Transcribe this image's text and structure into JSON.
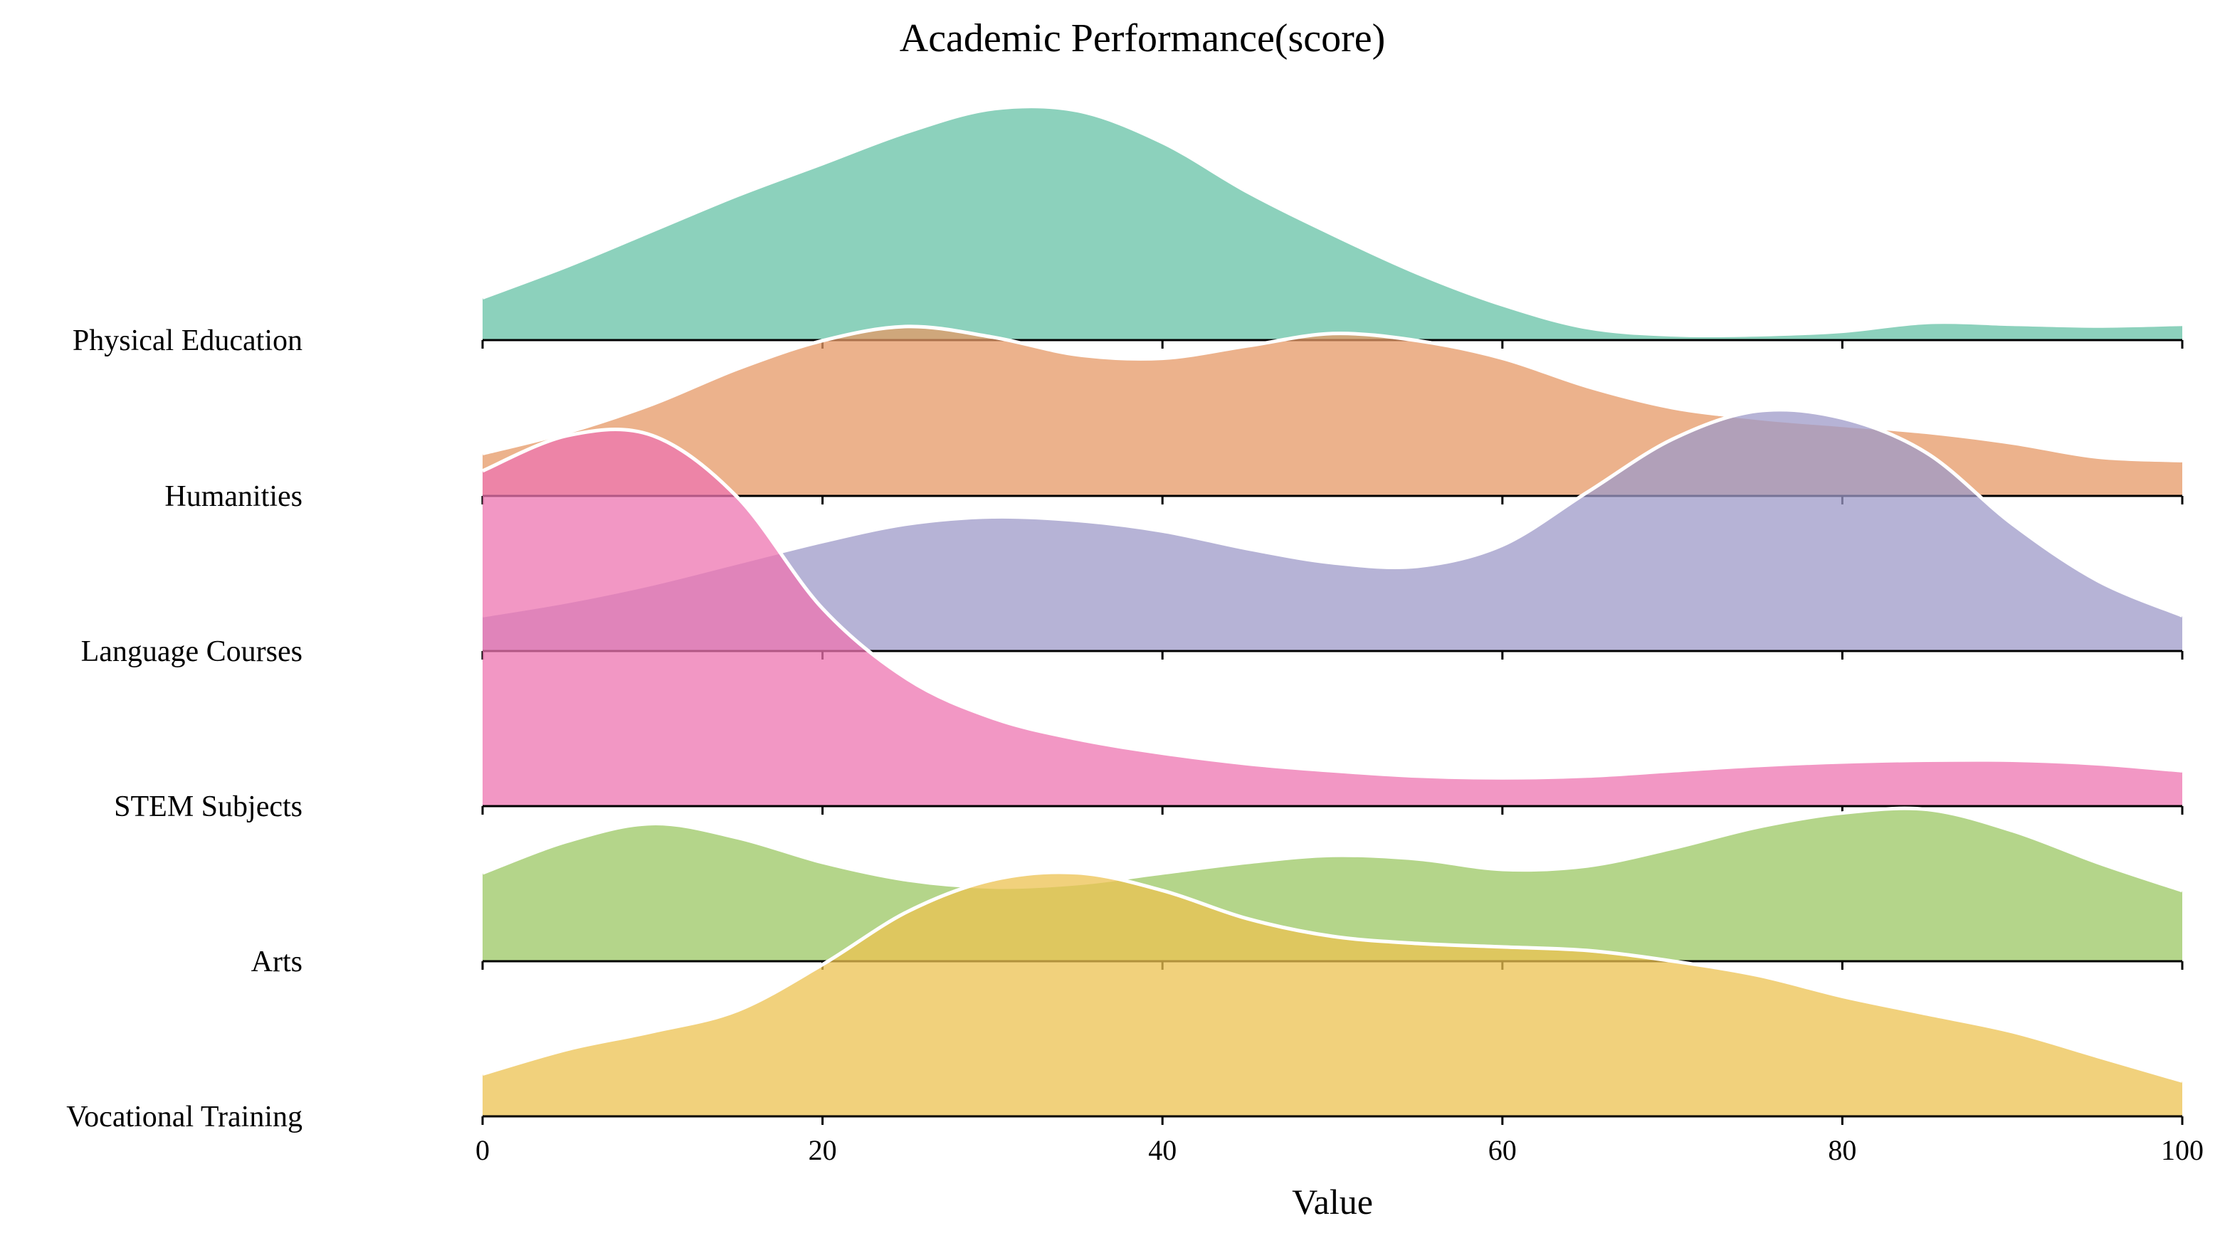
{
  "chart_data": {
    "type": "ridgeline",
    "title": "Academic Performance(score)",
    "xlabel": "Value",
    "xlim": [
      0,
      100
    ],
    "xticks": [
      0,
      20,
      40,
      60,
      80,
      100
    ],
    "grid": false,
    "legend": "none",
    "fill_opacity": 0.75,
    "x": [
      0,
      5,
      10,
      15,
      20,
      25,
      30,
      35,
      40,
      45,
      50,
      55,
      60,
      65,
      70,
      75,
      80,
      85,
      90,
      95,
      100
    ],
    "series": [
      {
        "name": "Physical Education",
        "color": "#66c2a5",
        "values": [
          0.24,
          0.42,
          0.62,
          0.82,
          1.0,
          1.18,
          1.31,
          1.3,
          1.12,
          0.84,
          0.6,
          0.38,
          0.2,
          0.07,
          0.03,
          0.03,
          -0.05,
          -0.1,
          -0.09,
          -0.08,
          -0.09
        ]
      },
      {
        "name": "Humanities",
        "color": "#e59866",
        "values": [
          0.24,
          0.42,
          0.62,
          0.82,
          1.0,
          1.18,
          1.31,
          1.3,
          1.12,
          0.84,
          0.6,
          0.38,
          0.2,
          0.07,
          0.03,
          0.03,
          0.05,
          0.1,
          0.09,
          0.08,
          0.09
        ],
        "values_actual": [
          0.22,
          0.35,
          0.5,
          0.68,
          0.85,
          0.9,
          0.85,
          0.78,
          0.8,
          0.88,
          0.9,
          0.82,
          0.72,
          0.62,
          0.55,
          0.5,
          0.45,
          0.42,
          0.38,
          0.3,
          0.24
        ]
      }
    ]
  }
}
